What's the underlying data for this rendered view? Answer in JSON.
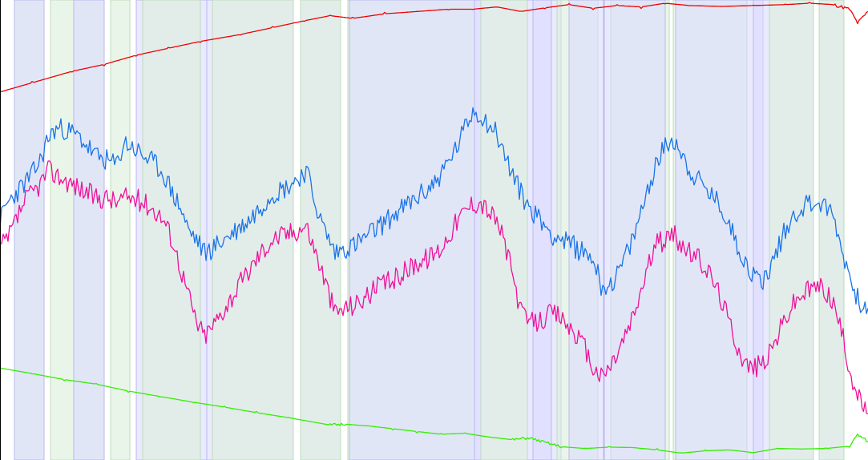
{
  "chart_data": {
    "type": "line",
    "title": "",
    "xlabel": "",
    "ylabel": "",
    "grid": false,
    "legend": "none",
    "xlim": [
      0,
      1083
    ],
    "ylim": [
      0,
      100
    ],
    "colors": {
      "red_series": "#ee0000",
      "blue_series": "#1a73e8",
      "magenta_series": "#ee1199",
      "green_series": "#33ee00",
      "blue_band": "#d8d8ff",
      "green_band": "#dcefdc"
    },
    "bands": [
      {
        "class": "green",
        "start": 18,
        "end": 55
      },
      {
        "class": "blue",
        "start": 18,
        "end": 55,
        "lower_only": true
      },
      {
        "class": "green",
        "start": 63,
        "end": 130
      },
      {
        "class": "blue",
        "start": 92,
        "end": 130,
        "upper_only": true
      },
      {
        "class": "green",
        "start": 138,
        "end": 162,
        "upper_only": true
      },
      {
        "class": "blue",
        "start": 170,
        "end": 258,
        "upper_only": true
      },
      {
        "class": "green",
        "start": 178,
        "end": 250,
        "lower_only": true
      },
      {
        "class": "blue",
        "start": 258,
        "end": 366,
        "lower_only": true
      },
      {
        "class": "green",
        "start": 265,
        "end": 366,
        "upper_only": true
      },
      {
        "class": "blue",
        "start": 375,
        "end": 425
      },
      {
        "class": "green",
        "start": 375,
        "end": 425,
        "lower_only": true
      },
      {
        "class": "green",
        "start": 434,
        "end": 592,
        "upper_only": true
      },
      {
        "class": "blue",
        "start": 436,
        "end": 600,
        "lower_only": true
      },
      {
        "class": "blue",
        "start": 592,
        "end": 700,
        "upper_only": true
      },
      {
        "class": "green",
        "start": 600,
        "end": 658,
        "lower_only": true
      },
      {
        "class": "blue",
        "start": 665,
        "end": 688,
        "lower_only": true
      },
      {
        "class": "green",
        "start": 695,
        "end": 746,
        "lower_only": true
      },
      {
        "class": "blue",
        "start": 710,
        "end": 753,
        "upper_only": true
      },
      {
        "class": "green",
        "start": 762,
        "end": 835,
        "upper_only": true
      },
      {
        "class": "blue",
        "start": 754,
        "end": 830,
        "lower_only": true
      },
      {
        "class": "green",
        "start": 840,
        "end": 932,
        "lower_only": true
      },
      {
        "class": "blue",
        "start": 843,
        "end": 952,
        "upper_only": true
      },
      {
        "class": "blue",
        "start": 940,
        "end": 1015,
        "lower_only": true
      },
      {
        "class": "green",
        "start": 960,
        "end": 1015,
        "upper_only": true
      },
      {
        "class": "blue",
        "start": 1022,
        "end": 1053
      },
      {
        "class": "green",
        "start": 1022,
        "end": 1053,
        "lower_only": true
      }
    ],
    "series": [
      {
        "key": "red_series",
        "x": [
          0,
          40,
          90,
          130,
          170,
          210,
          250,
          300,
          340,
          380,
          412,
          440,
          480,
          520,
          560,
          590,
          620,
          650,
          680,
          710,
          740,
          770,
          800,
          830,
          860,
          900,
          940,
          980,
          1010,
          1040,
          1060,
          1070,
          1083
        ],
        "y": [
          80,
          82,
          84.5,
          86,
          88,
          89.5,
          91,
          92.5,
          94,
          95.5,
          96.6,
          96,
          97,
          97.5,
          98,
          98,
          98.5,
          97.5,
          98.3,
          99,
          98.2,
          98.8,
          98.5,
          99.3,
          98.8,
          98.6,
          98.8,
          99,
          99.3,
          99,
          98,
          95,
          97.5
        ]
      },
      {
        "key": "blue_series",
        "x": [
          0,
          10,
          20,
          30,
          40,
          50,
          60,
          70,
          80,
          90,
          100,
          110,
          120,
          135,
          145,
          155,
          165,
          180,
          195,
          205,
          215,
          225,
          235,
          245,
          255,
          265,
          280,
          295,
          310,
          325,
          340,
          355,
          370,
          382,
          400,
          418,
          430,
          445,
          460,
          475,
          490,
          505,
          520,
          535,
          550,
          560,
          570,
          580,
          590,
          600,
          610,
          620,
          630,
          640,
          650,
          660,
          670,
          680,
          690,
          700,
          710,
          720,
          730,
          740,
          750,
          760,
          770,
          780,
          790,
          800,
          810,
          820,
          830,
          840,
          850,
          860,
          870,
          880,
          890,
          900,
          910,
          920,
          930,
          940,
          950,
          960,
          970,
          980,
          990,
          1000,
          1010,
          1020,
          1030,
          1040,
          1050,
          1060,
          1070,
          1083
        ],
        "y": [
          52,
          56,
          58,
          60,
          62,
          65,
          70,
          72,
          72,
          71,
          70,
          68,
          66,
          65,
          64,
          69,
          68,
          66,
          64,
          62,
          58,
          55,
          50,
          48,
          45,
          46,
          48,
          50,
          52,
          55,
          58,
          59,
          61,
          63,
          52,
          45,
          46,
          47,
          49,
          51,
          53,
          55,
          57,
          59,
          62,
          65,
          68,
          72,
          76,
          75,
          73,
          71,
          66,
          62,
          58,
          55,
          53,
          51,
          49,
          48,
          47,
          46,
          45,
          44,
          38,
          38,
          40,
          44,
          48,
          54,
          60,
          65,
          68,
          70,
          67,
          63,
          61,
          59,
          57,
          55,
          51,
          47,
          43,
          40,
          39,
          41,
          46,
          50,
          53,
          55,
          56,
          56,
          55,
          53,
          46,
          40,
          35,
          33
        ]
      },
      {
        "key": "magenta_series",
        "x": [
          0,
          10,
          20,
          30,
          40,
          50,
          60,
          70,
          80,
          90,
          100,
          110,
          120,
          135,
          145,
          155,
          165,
          180,
          195,
          205,
          215,
          225,
          235,
          245,
          255,
          265,
          280,
          295,
          310,
          325,
          340,
          355,
          370,
          382,
          400,
          418,
          430,
          445,
          460,
          475,
          490,
          505,
          520,
          535,
          550,
          560,
          570,
          580,
          590,
          600,
          610,
          620,
          630,
          640,
          650,
          660,
          670,
          680,
          690,
          700,
          710,
          720,
          730,
          740,
          750,
          760,
          770,
          780,
          790,
          800,
          810,
          820,
          830,
          840,
          850,
          860,
          870,
          880,
          890,
          900,
          910,
          920,
          930,
          940,
          950,
          960,
          970,
          980,
          990,
          1000,
          1010,
          1020,
          1030,
          1040,
          1050,
          1060,
          1070,
          1083
        ],
        "y": [
          46,
          48,
          52,
          56,
          58,
          60,
          63,
          62,
          61,
          60,
          59,
          58,
          57,
          57,
          56,
          57,
          57,
          56,
          54,
          52,
          48,
          42,
          36,
          30,
          27,
          29,
          33,
          37,
          41,
          45,
          48,
          49,
          50,
          51,
          42,
          32,
          33,
          34,
          36,
          38,
          39,
          41,
          43,
          44,
          46,
          49,
          52,
          54,
          56,
          56,
          54,
          52,
          47,
          40,
          32,
          30,
          30,
          31,
          32,
          31,
          29,
          27,
          24,
          20,
          18,
          20,
          23,
          27,
          31,
          37,
          43,
          47,
          48,
          49,
          47,
          45,
          44,
          42,
          39,
          35,
          30,
          25,
          21,
          20,
          21,
          23,
          27,
          31,
          34,
          36,
          37,
          38,
          37,
          34,
          28,
          20,
          14,
          10
        ]
      },
      {
        "key": "green_series",
        "x": [
          0,
          40,
          80,
          120,
          160,
          200,
          240,
          280,
          320,
          360,
          412,
          430,
          460,
          490,
          520,
          550,
          580,
          610,
          640,
          660,
          680,
          700,
          730,
          760,
          790,
          820,
          850,
          880,
          910,
          940,
          970,
          1000,
          1030,
          1060,
          1070,
          1083
        ],
        "y": [
          20,
          18.8,
          17.5,
          16.5,
          15,
          13.8,
          12.6,
          11.5,
          10.3,
          9.2,
          7.6,
          7.8,
          7.4,
          6.8,
          6.2,
          5.6,
          5.8,
          5,
          4.4,
          4.8,
          3.8,
          2.9,
          2.5,
          2.8,
          2.7,
          2.2,
          1.5,
          2,
          2.2,
          1.6,
          2.5,
          2.4,
          2.5,
          3,
          5.5,
          4
        ]
      }
    ]
  }
}
